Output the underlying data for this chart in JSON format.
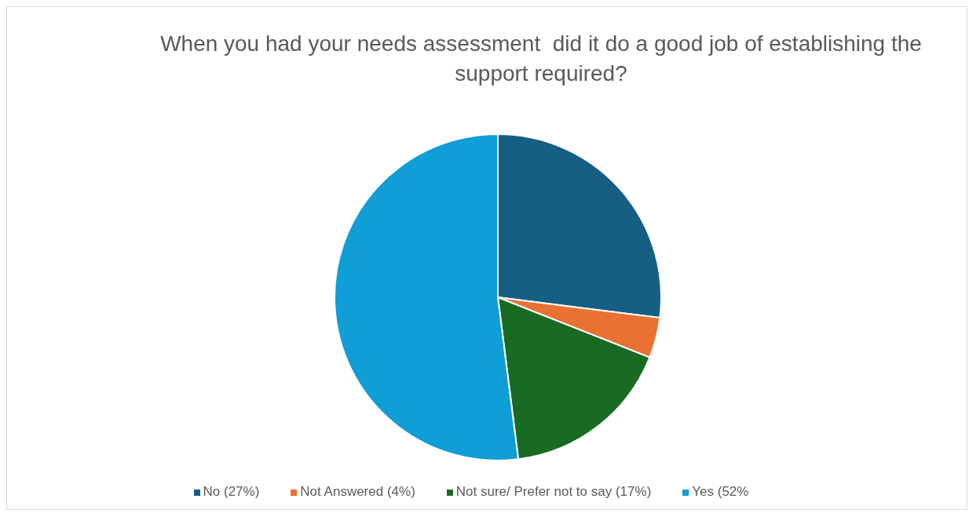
{
  "chart_data": {
    "type": "pie",
    "title": "When you had your needs assessment  did it do a good job of establishing the support required?",
    "categories": [
      "No (27%)",
      "Not Answered (4%)",
      "Not sure/ Prefer not to say (17%)",
      "Yes (52%"
    ],
    "values": [
      27,
      4,
      17,
      52
    ],
    "colors": [
      "#175e84",
      "#e97132",
      "#196b24",
      "#0f9ed5"
    ],
    "legend": "bottom"
  }
}
